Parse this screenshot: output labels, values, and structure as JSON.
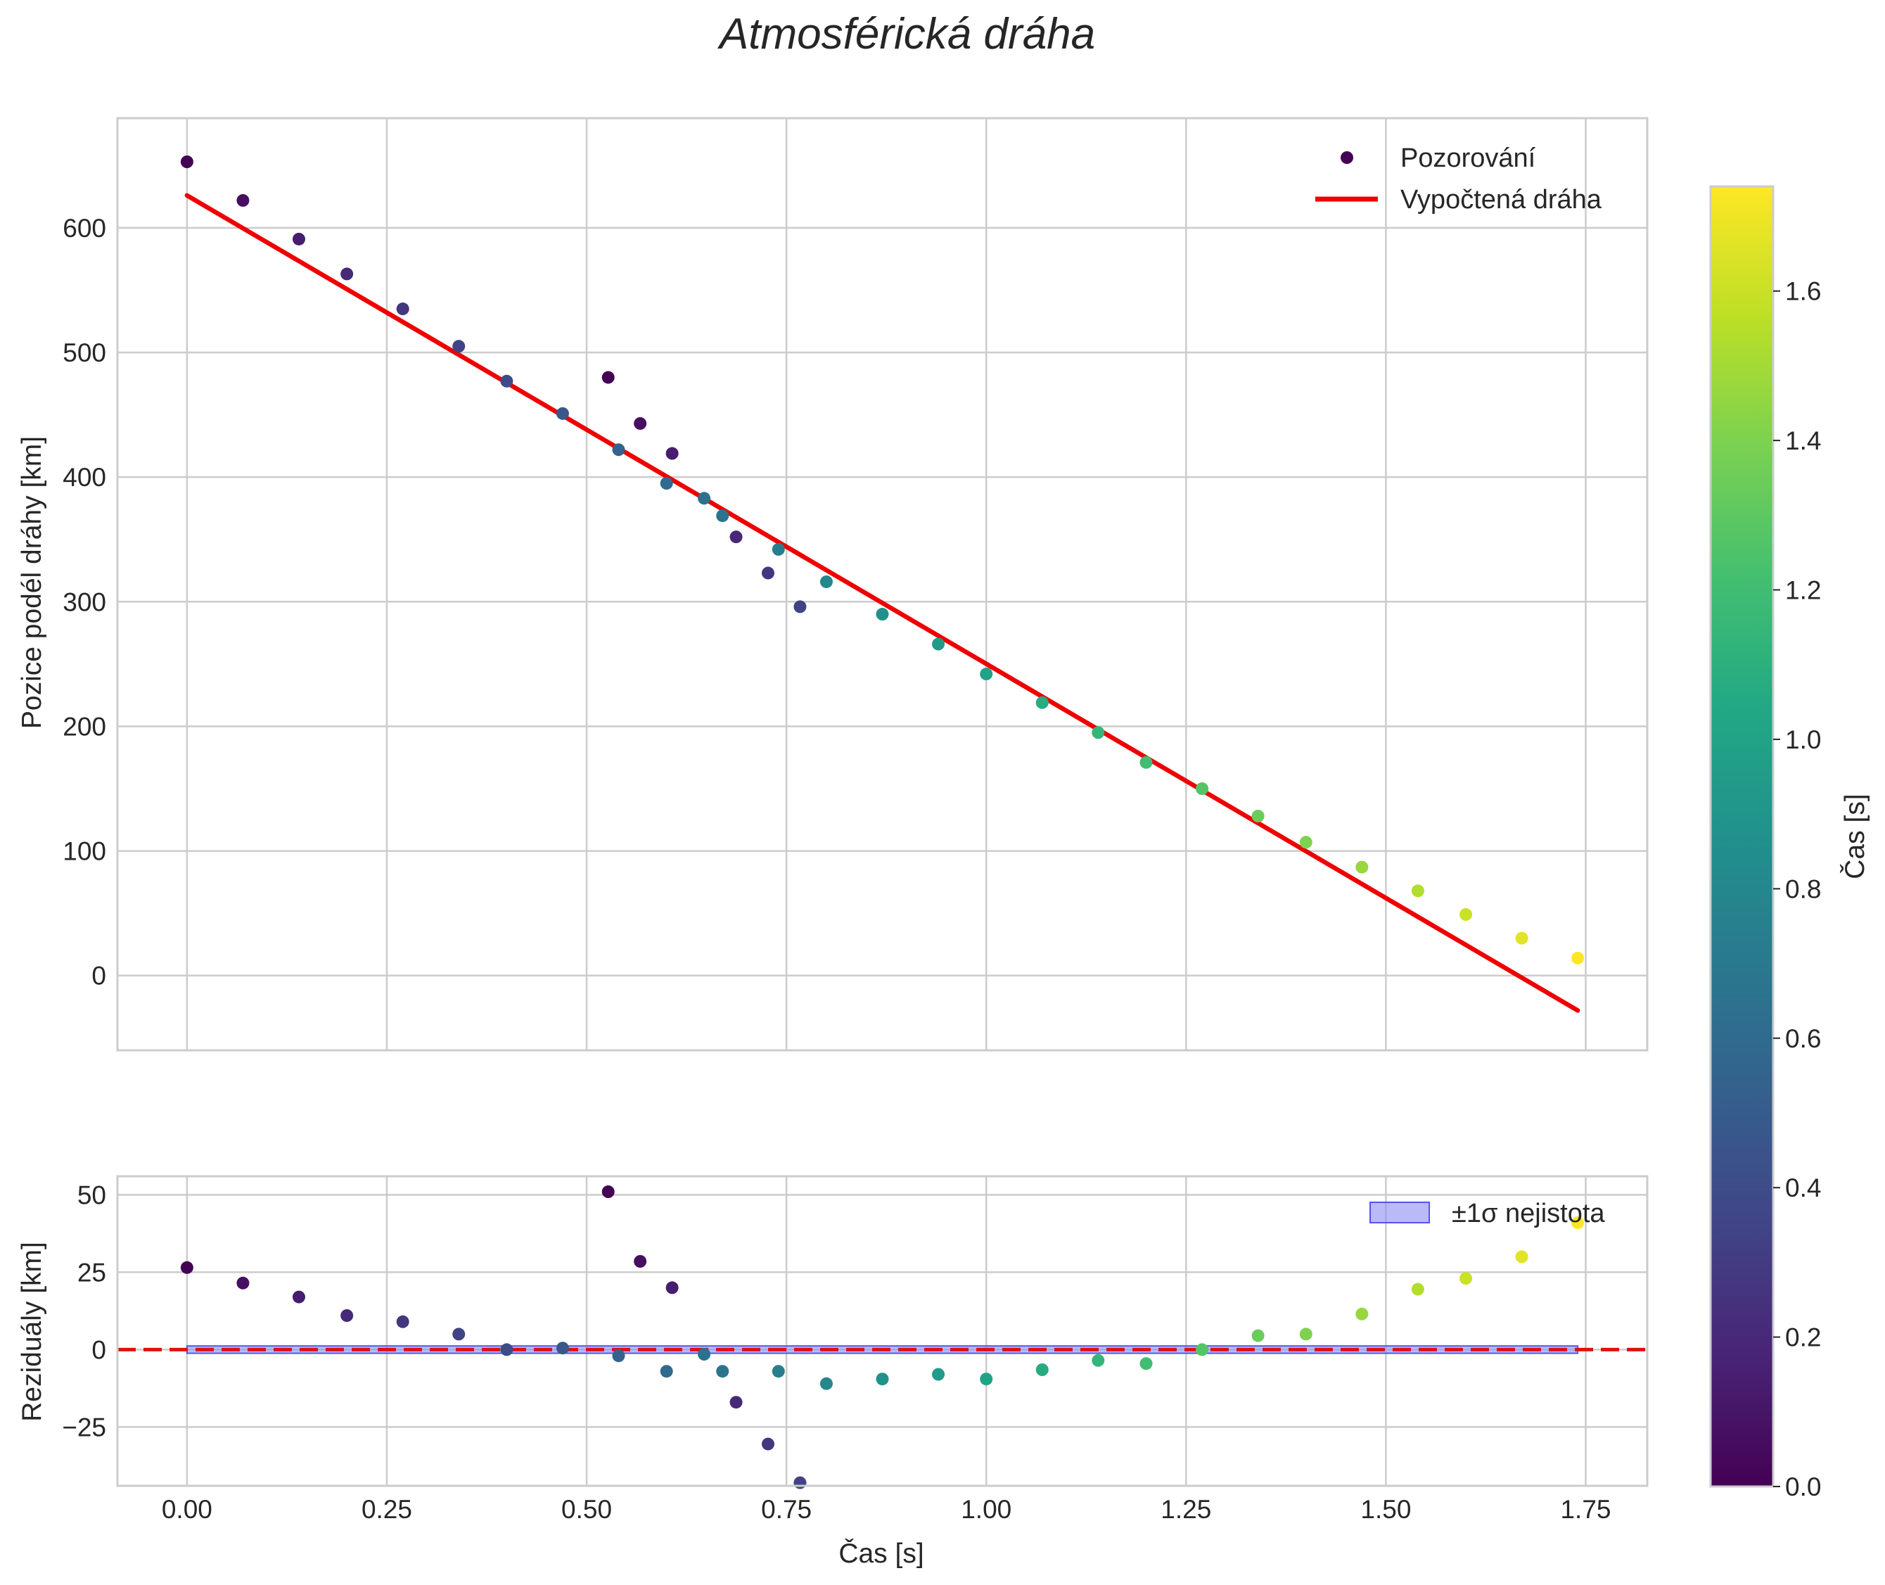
{
  "chart_data": {
    "type": "scatter",
    "title": "Atmosférická dráha",
    "xlabel": "Čas [s]",
    "colormap": "viridis",
    "xlim": [
      -0.087,
      1.827
    ],
    "xticks": [
      0.0,
      0.25,
      0.5,
      0.75,
      1.0,
      1.25,
      1.5,
      1.75
    ],
    "xtick_labels": [
      "0.00",
      "0.25",
      "0.50",
      "0.75",
      "1.00",
      "1.25",
      "1.50",
      "1.75"
    ],
    "time": [
      0.0,
      0.07,
      0.14,
      0.2,
      0.27,
      0.34,
      0.4,
      0.47,
      0.527,
      0.54,
      0.567,
      0.6,
      0.607,
      0.647,
      0.67,
      0.687,
      0.727,
      0.74,
      0.767,
      0.8,
      0.87,
      0.94,
      1.0,
      1.07,
      1.14,
      1.2,
      1.27,
      1.34,
      1.4,
      1.47,
      1.54,
      1.6,
      1.67,
      1.74
    ],
    "color_value": [
      0.0,
      0.07,
      0.14,
      0.2,
      0.27,
      0.34,
      0.4,
      0.47,
      0.0,
      0.54,
      0.07,
      0.6,
      0.14,
      0.647,
      0.67,
      0.2,
      0.27,
      0.74,
      0.34,
      0.8,
      0.87,
      0.94,
      1.0,
      1.07,
      1.14,
      1.2,
      1.27,
      1.34,
      1.4,
      1.47,
      1.54,
      1.6,
      1.67,
      1.74
    ],
    "top_panel": {
      "ylabel": "Pozice podél dráhy [km]",
      "ylim": [
        -60,
        688
      ],
      "yticks": [
        0,
        100,
        200,
        300,
        400,
        500,
        600
      ],
      "ytick_labels": [
        "0",
        "100",
        "200",
        "300",
        "400",
        "500",
        "600"
      ],
      "observed_position": [
        653,
        622,
        591,
        563,
        535,
        505,
        477,
        451,
        480,
        422,
        443,
        395,
        419,
        383,
        369,
        352,
        323,
        342,
        296,
        316,
        290,
        266,
        242,
        219,
        195,
        171,
        150,
        128,
        107,
        87,
        68,
        49,
        30,
        14
      ],
      "fit_line": {
        "x": [
          0.0,
          1.74
        ],
        "y": [
          626,
          -28
        ]
      },
      "legend": {
        "location": "top-right",
        "entries": [
          "Pozorování",
          "Vypočtená dráha"
        ]
      }
    },
    "bottom_panel": {
      "ylabel": "Reziduály [km]",
      "ylim": [
        -44,
        56
      ],
      "yticks": [
        -25,
        0,
        25,
        50
      ],
      "ytick_labels": [
        "−25",
        "0",
        "25",
        "50"
      ],
      "residuals": [
        26.5,
        21.5,
        17,
        11,
        9,
        5,
        0,
        0.5,
        51,
        -2,
        28.5,
        -7,
        20,
        -1.5,
        -7,
        -17,
        -30.5,
        -7,
        -43,
        -11,
        -9.5,
        -8,
        -9.5,
        -6.5,
        -3.5,
        -4.5,
        0,
        4.5,
        5,
        11.5,
        19.5,
        23,
        30,
        41
      ],
      "zero_line": 0,
      "uncertainty_band": {
        "x": [
          0.0,
          1.74
        ],
        "sigma": 0.5
      },
      "legend": {
        "location": "top-right",
        "entries": [
          "±1σ nejistota"
        ]
      }
    },
    "colorbar": {
      "label": "Čas [s]",
      "range": [
        0.0,
        1.74
      ],
      "ticks": [
        0.0,
        0.2,
        0.4,
        0.6,
        0.8,
        1.0,
        1.2,
        1.4,
        1.6
      ],
      "tick_labels": [
        "0.0",
        "0.2",
        "0.4",
        "0.6",
        "0.8",
        "1.0",
        "1.2",
        "1.4",
        "1.6"
      ]
    },
    "colors": {
      "fit_line": "#ee0000",
      "zero_line": "#dd1111",
      "band_fill": "#8c8cf2",
      "band_edge": "#5555ee",
      "grid": "#cccccc",
      "text": "#262626"
    }
  }
}
